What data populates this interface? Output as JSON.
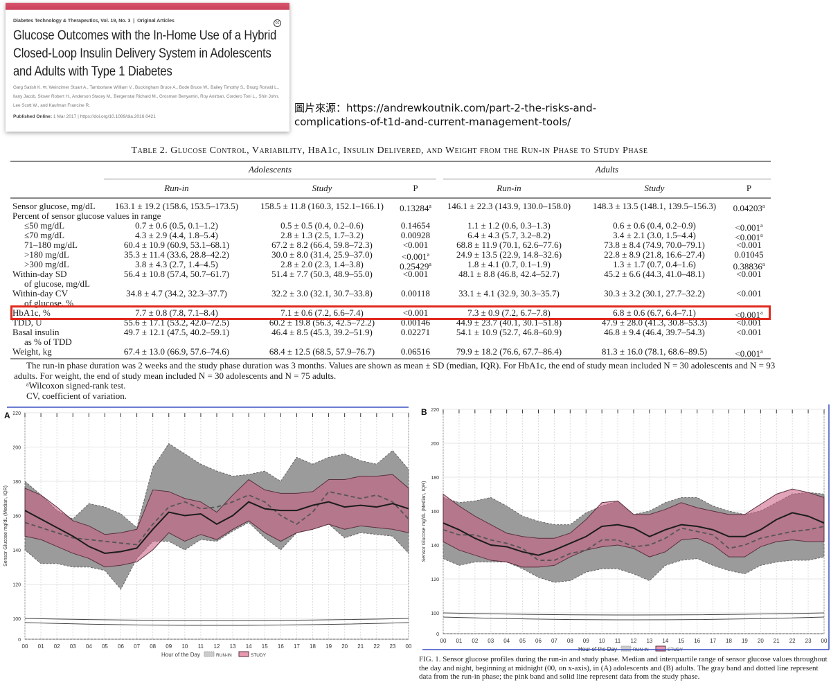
{
  "article": {
    "journal": "Diabetes Technology & Therapeutics, Vol. 19, No. 3",
    "separator": "|",
    "section": "Original Articles",
    "cc_badge": "cc",
    "title": "Glucose Outcomes with the In-Home Use of a Hybrid Closed-Loop Insulin Delivery System in Adolescents and Adults with Type 1 Diabetes",
    "authors": "Garg Satish K. ✉, Weinzimer Stuart A., Tamborlane William V., Buckingham Bruce A., Bode Bruce W., Bailey Timothy S., Brazg Ronald L., Ilany Jacob, Slover Robert H., Anderson Stacey M., Bergenstal Richard M., Grosman Benyamin, Roy Anirban, Cordero Toni L., Shin John, Lee Scott W., and Kaufman Francine R.",
    "published_label": "Published Online:",
    "published_value": "1 Mar 2017 | https://doi.org/10.1089/dia.2016.0421"
  },
  "source_note": "圖片來源：https://andrewkoutnik.com/part-2-the-risks-and-complications-of-t1d-and-current-management-tools/",
  "table": {
    "title": "Table 2. Glucose Control, Variability, HbA1c, Insulin Delivered, and Weight from the Run-in Phase to Study Phase",
    "groups": [
      "Adolescents",
      "Adults"
    ],
    "columns": [
      "Run-in",
      "Study",
      "P",
      "Run-in",
      "Study",
      "P"
    ],
    "hidden_label": "of glucose, %",
    "rows": [
      {
        "label": "Sensor glucose, mg/dL",
        "values": [
          "163.1 ± 19.2 (158.6, 153.5–173.5)",
          "158.5 ± 11.8 (160.3, 152.1–166.1)",
          "0.13284",
          "146.1 ± 22.3 (143.9, 130.0–158.0)",
          "148.3 ± 13.5 (148.1, 139.5–156.3)",
          "0.04203"
        ],
        "sup": [
          2,
          5
        ]
      },
      {
        "label": "Percent of sensor glucose values in range",
        "values": []
      },
      {
        "label": "≤50 mg/dL",
        "indent": true,
        "values": [
          "0.7 ± 0.6 (0.5, 0.1–1.2)",
          "0.5 ± 0.5 (0.4, 0.2–0.6)",
          "0.14654",
          "1.1 ± 1.2 (0.6, 0.3–1.3)",
          "0.6 ± 0.6 (0.4, 0.2–0.9)",
          "<0.001"
        ],
        "sup": [
          5
        ]
      },
      {
        "label": "≤70 mg/dL",
        "indent": true,
        "values": [
          "4.3 ± 2.9 (4.4, 1.8–5.4)",
          "2.8 ± 1.3 (2.5, 1.7–3.2)",
          "0.00928",
          "6.4 ± 4.3 (5.7, 3.2–8.2)",
          "3.4 ± 2.1 (3.0, 1.5–4.4)",
          "<0.001"
        ],
        "sup": [
          5
        ]
      },
      {
        "label": "71–180 mg/dL",
        "indent": true,
        "values": [
          "60.4 ± 10.9 (60.9, 53.1–68.1)",
          "67.2 ± 8.2 (66.4, 59.8–72.3)",
          "<0.001",
          "68.8 ± 11.9 (70.1, 62.6–77.6)",
          "73.8 ± 8.4 (74.9, 70.0–79.1)",
          "<0.001"
        ],
        "sup": []
      },
      {
        "label": ">180 mg/dL",
        "indent": true,
        "values": [
          "35.3 ± 11.4 (33.6, 28.8–42.2)",
          "30.0 ± 8.0 (31.4, 25.9–37.0)",
          "<0.001",
          "24.9 ± 13.5 (22.9, 14.8–32.6)",
          "22.8 ± 8.9 (21.8, 16.6–27.4)",
          "0.01045"
        ],
        "sup": [
          2
        ]
      },
      {
        "label": ">300 mg/dL",
        "indent": true,
        "values": [
          "3.8 ± 4.3 (2.7, 1.4–4.5)",
          "2.8 ± 2.0 (2.3, 1.4–3.8)",
          "0.25429",
          "1.8 ± 4.1 (0.7, 0.1–1.9)",
          "1.3 ± 1.7 (0.7, 0.4–1.6)",
          "0.38836"
        ],
        "sup": [
          2,
          5
        ]
      },
      {
        "label": "Within-day SD",
        "values": [
          "56.4 ± 10.8 (57.4, 50.7–61.7)",
          "51.4 ± 7.7 (50.3, 48.9–55.0)",
          "<0.001",
          "48.1 ± 8.8 (46.8, 42.4–52.7)",
          "45.2 ± 6.6 (44.3, 41.0–48.1)",
          "<0.001"
        ],
        "sup": []
      },
      {
        "label": "of glucose, mg/dL",
        "indent": true,
        "values": []
      },
      {
        "label": "Within-day CV",
        "values": [
          "34.8 ± 4.7 (34.2, 32.3–37.7)",
          "32.2 ± 3.0 (32.1, 30.7–33.8)",
          "0.00118",
          "33.1 ± 4.1 (32.9, 30.3–35.7)",
          "30.3 ± 3.2 (30.1, 27.7–32.2)",
          "<0.001"
        ],
        "sup": []
      },
      {
        "label": "HbA1c, %",
        "values": [
          "7.7 ± 0.8 (7.8, 7.1–8.4)",
          "7.1 ± 0.6 (7.2, 6.6–7.4)",
          "<0.001",
          "7.3 ± 0.9 (7.2, 6.7–7.8)",
          "6.8 ± 0.6 (6.7, 6.4–7.1)",
          "<0.001"
        ],
        "sup": [
          5
        ],
        "highlight": true
      },
      {
        "label": "TDD, U",
        "values": [
          "55.6 ± 17.1 (53.2, 42.0–72.5)",
          "60.2 ± 19.8 (56.3, 42.5–72.2)",
          "0.00146",
          "44.9 ± 23.7 (40.1, 30.1–51.8)",
          "47.9 ± 28.0 (41.3, 30.8–53.3)",
          "<0.001"
        ],
        "sup": []
      },
      {
        "label": "Basal insulin",
        "values": [
          "49.7 ± 12.1 (47.5, 40.2–59.1)",
          "46.4 ± 8.5 (45.3, 39.2–51.9)",
          "0.02271",
          "54.1 ± 10.9 (52.7, 46.8–60.9)",
          "46.8 ± 9.4 (46.4, 39.7–54.3)",
          "<0.001"
        ],
        "sup": []
      },
      {
        "label": "as % of TDD",
        "indent": true,
        "values": []
      },
      {
        "label": "Weight, kg",
        "values": [
          "67.4 ± 13.0 (66.9, 57.6–74.6)",
          "68.4 ± 12.5 (68.5, 57.9–76.7)",
          "0.06516",
          "79.9 ± 18.2 (76.6, 67.7–86.4)",
          "81.3 ± 16.0 (78.1, 68.6–89.5)",
          "<0.001"
        ],
        "sup": [
          5
        ]
      }
    ],
    "sup_mark": "a",
    "footnote": "The run-in phase duration was 2 weeks and the study phase duration was 3 months. Values are shown as mean ± SD (median, IQR). For HbA1c, the end of study mean included N = 30 adolescents and N = 93 adults. For weight, the end of study mean included N = 30 adolescents and N = 75 adults.",
    "footnote_a": "ᵃWilcoxon signed-rank test.",
    "footnote_cv": "CV, coefficient of variation."
  },
  "figure_caption": "FIG. 1.  Sensor glucose profiles during the run-in and study phase. Median and interquartile range of sensor glucose values throughout the day and night, beginning at midnight (00, on x-axis), in (A) adolescents and (B) adults. The gray band and dotted line represent data from the run-in phase; the pink band and solid line represent data from the study phase.",
  "colors": {
    "runin": "#9b9b9b",
    "study": "#c0607e",
    "highlight": "#e0281c",
    "frame": "#3a4fc4"
  },
  "chart_data": [
    {
      "type": "area",
      "panel": "A",
      "xlabel": "Hour of the Day",
      "ylabel": "Sensor Glucose mg/dL (Median, IQR)",
      "x_ticks": [
        "00",
        "01",
        "02",
        "03",
        "04",
        "05",
        "06",
        "07",
        "08",
        "09",
        "10",
        "11",
        "12",
        "13",
        "14",
        "15",
        "16",
        "17",
        "18",
        "19",
        "20",
        "21",
        "22",
        "23",
        "00"
      ],
      "y_ticks": [
        0,
        100,
        120,
        140,
        160,
        180,
        200,
        220
      ],
      "ylim": [
        0,
        220
      ],
      "grid": true,
      "legend": [
        "RUN-IN",
        "STUDY"
      ],
      "legend_position": "bottom",
      "series": [
        {
          "name": "RUN-IN",
          "median": [
            156,
            153,
            150,
            147,
            146,
            145,
            144,
            143,
            155,
            165,
            168,
            164,
            165,
            168,
            172,
            168,
            160,
            155,
            162,
            174,
            172,
            170,
            172,
            168,
            158
          ],
          "q1": [
            140,
            132,
            132,
            130,
            130,
            128,
            117,
            135,
            145,
            145,
            140,
            146,
            145,
            151,
            156,
            147,
            140,
            150,
            152,
            155,
            147,
            150,
            149,
            148,
            138
          ],
          "q3": [
            180,
            172,
            163,
            158,
            167,
            165,
            161,
            153,
            188,
            202,
            196,
            190,
            186,
            183,
            184,
            186,
            180,
            194,
            190,
            194,
            196,
            192,
            190,
            198,
            187
          ]
        },
        {
          "name": "STUDY",
          "median": [
            163,
            158,
            153,
            148,
            142,
            138,
            139,
            141,
            152,
            162,
            160,
            161,
            155,
            160,
            168,
            164,
            163,
            163,
            166,
            168,
            165,
            166,
            165,
            167,
            164
          ],
          "q1": [
            148,
            146,
            142,
            138,
            135,
            130,
            131,
            133,
            140,
            150,
            145,
            149,
            146,
            152,
            157,
            150,
            145,
            150,
            152,
            155,
            152,
            154,
            153,
            152,
            150
          ],
          "q3": [
            176,
            172,
            165,
            157,
            154,
            149,
            150,
            152,
            175,
            174,
            170,
            168,
            162,
            172,
            181,
            175,
            173,
            173,
            174,
            181,
            181,
            183,
            183,
            184,
            176
          ]
        }
      ]
    },
    {
      "type": "area",
      "panel": "B",
      "xlabel": "Hour of the Day",
      "ylabel": "Sensor Glucose mg/dL (Median, IQR)",
      "x_ticks": [
        "00",
        "01",
        "02",
        "03",
        "04",
        "05",
        "06",
        "07",
        "08",
        "09",
        "10",
        "11",
        "12",
        "13",
        "14",
        "15",
        "16",
        "17",
        "18",
        "19",
        "20",
        "21",
        "22",
        "23",
        "00"
      ],
      "y_ticks": [
        0,
        100,
        120,
        140,
        160,
        180,
        200,
        220
      ],
      "ylim": [
        0,
        220
      ],
      "grid": true,
      "legend": [
        "RUN-IN",
        "STUDY"
      ],
      "legend_position": "bottom",
      "series": [
        {
          "name": "RUN-IN",
          "median": [
            149,
            146,
            146,
            143,
            141,
            138,
            131,
            131,
            135,
            137,
            143,
            143,
            139,
            140,
            144,
            150,
            148,
            146,
            138,
            140,
            144,
            146,
            148,
            149,
            151
          ],
          "q1": [
            132,
            128,
            130,
            130,
            130,
            126,
            121,
            118,
            119,
            124,
            126,
            126,
            123,
            119,
            128,
            131,
            132,
            128,
            125,
            123,
            128,
            130,
            131,
            131,
            133
          ],
          "q3": [
            168,
            165,
            166,
            168,
            163,
            157,
            154,
            152,
            152,
            159,
            163,
            166,
            158,
            160,
            165,
            168,
            168,
            163,
            160,
            158,
            160,
            165,
            170,
            171,
            170
          ]
        },
        {
          "name": "STUDY",
          "median": [
            153,
            149,
            144,
            140,
            139,
            136,
            134,
            137,
            141,
            145,
            151,
            152,
            150,
            145,
            149,
            152,
            151,
            149,
            145,
            145,
            149,
            155,
            159,
            157,
            153
          ],
          "q1": [
            142,
            137,
            134,
            131,
            130,
            127,
            127,
            128,
            133,
            137,
            139,
            140,
            138,
            133,
            136,
            143,
            144,
            140,
            133,
            133,
            139,
            142,
            143,
            142,
            142
          ],
          "q3": [
            170,
            163,
            157,
            152,
            147,
            145,
            144,
            144,
            147,
            155,
            165,
            166,
            158,
            158,
            161,
            165,
            162,
            160,
            158,
            158,
            164,
            170,
            173,
            171,
            168
          ]
        }
      ]
    }
  ]
}
